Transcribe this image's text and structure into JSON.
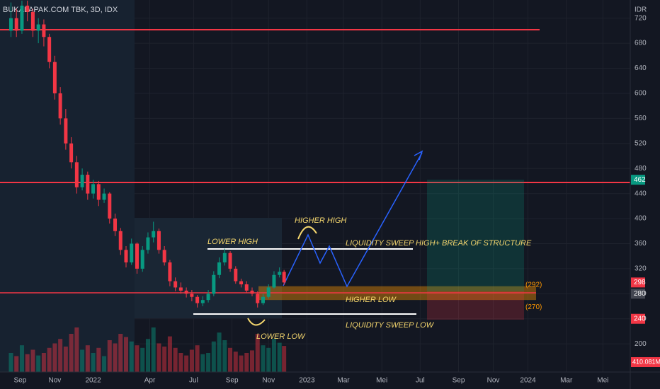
{
  "chart_data": {
    "type": "candlestick",
    "title": "BUKALAPAK.COM TBK, 3D, IDX",
    "currency": "IDR",
    "xlim": [
      -1.1,
      33.4
    ],
    "ylim": [
      155,
      749
    ],
    "yticks": [
      200,
      240,
      280,
      320,
      360,
      400,
      440,
      480,
      520,
      560,
      600,
      640,
      680,
      720
    ],
    "xticks": [
      {
        "value": 0,
        "label": "Sep"
      },
      {
        "value": 1.9,
        "label": "Nov"
      },
      {
        "value": 4.0,
        "label": "2022"
      },
      {
        "value": 7.1,
        "label": "Apr"
      },
      {
        "value": 9.5,
        "label": "Jul"
      },
      {
        "value": 11.6,
        "label": "Sep"
      },
      {
        "value": 13.6,
        "label": "Nov"
      },
      {
        "value": 15.7,
        "label": "2023"
      },
      {
        "value": 17.7,
        "label": "Mar"
      },
      {
        "value": 19.8,
        "label": "Mei"
      },
      {
        "value": 21.9,
        "label": "Jul"
      },
      {
        "value": 24.0,
        "label": "Sep"
      },
      {
        "value": 25.9,
        "label": "Nov"
      },
      {
        "value": 27.8,
        "label": "2024"
      },
      {
        "value": 29.9,
        "label": "Mar"
      },
      {
        "value": 31.9,
        "label": "Mei"
      }
    ],
    "up_color": "#089981",
    "down_color": "#f23645",
    "candles": [
      {
        "x": -0.5,
        "o": 700,
        "h": 745,
        "l": 690,
        "c": 720
      },
      {
        "x": -0.2,
        "o": 720,
        "h": 735,
        "l": 690,
        "c": 700
      },
      {
        "x": 0.1,
        "o": 700,
        "h": 748,
        "l": 695,
        "c": 740
      },
      {
        "x": 0.4,
        "o": 740,
        "h": 748,
        "l": 715,
        "c": 730
      },
      {
        "x": 0.7,
        "o": 730,
        "h": 735,
        "l": 690,
        "c": 700
      },
      {
        "x": 1.0,
        "o": 700,
        "h": 720,
        "l": 680,
        "c": 710
      },
      {
        "x": 1.3,
        "o": 710,
        "h": 718,
        "l": 675,
        "c": 690
      },
      {
        "x": 1.6,
        "o": 690,
        "h": 695,
        "l": 640,
        "c": 650
      },
      {
        "x": 1.9,
        "o": 650,
        "h": 660,
        "l": 590,
        "c": 600
      },
      {
        "x": 2.2,
        "o": 600,
        "h": 610,
        "l": 550,
        "c": 560
      },
      {
        "x": 2.5,
        "o": 560,
        "h": 575,
        "l": 510,
        "c": 520
      },
      {
        "x": 2.8,
        "o": 520,
        "h": 530,
        "l": 480,
        "c": 490
      },
      {
        "x": 3.1,
        "o": 490,
        "h": 500,
        "l": 440,
        "c": 450
      },
      {
        "x": 3.4,
        "o": 450,
        "h": 480,
        "l": 445,
        "c": 470
      },
      {
        "x": 3.7,
        "o": 470,
        "h": 475,
        "l": 430,
        "c": 440
      },
      {
        "x": 4.0,
        "o": 440,
        "h": 462,
        "l": 432,
        "c": 455
      },
      {
        "x": 4.3,
        "o": 455,
        "h": 460,
        "l": 420,
        "c": 430
      },
      {
        "x": 4.6,
        "o": 430,
        "h": 448,
        "l": 425,
        "c": 440
      },
      {
        "x": 4.9,
        "o": 440,
        "h": 442,
        "l": 392,
        "c": 400
      },
      {
        "x": 5.2,
        "o": 400,
        "h": 408,
        "l": 372,
        "c": 380
      },
      {
        "x": 5.5,
        "o": 380,
        "h": 385,
        "l": 342,
        "c": 350
      },
      {
        "x": 5.8,
        "o": 350,
        "h": 356,
        "l": 322,
        "c": 330
      },
      {
        "x": 6.1,
        "o": 330,
        "h": 368,
        "l": 326,
        "c": 360
      },
      {
        "x": 6.4,
        "o": 360,
        "h": 362,
        "l": 312,
        "c": 320
      },
      {
        "x": 6.7,
        "o": 320,
        "h": 356,
        "l": 315,
        "c": 350
      },
      {
        "x": 7.0,
        "o": 350,
        "h": 378,
        "l": 344,
        "c": 370
      },
      {
        "x": 7.3,
        "o": 370,
        "h": 395,
        "l": 362,
        "c": 380
      },
      {
        "x": 7.6,
        "o": 380,
        "h": 384,
        "l": 344,
        "c": 350
      },
      {
        "x": 7.9,
        "o": 350,
        "h": 356,
        "l": 325,
        "c": 330
      },
      {
        "x": 8.2,
        "o": 330,
        "h": 334,
        "l": 292,
        "c": 300
      },
      {
        "x": 8.5,
        "o": 300,
        "h": 306,
        "l": 284,
        "c": 290
      },
      {
        "x": 8.8,
        "o": 290,
        "h": 298,
        "l": 280,
        "c": 285
      },
      {
        "x": 9.1,
        "o": 285,
        "h": 290,
        "l": 274,
        "c": 280
      },
      {
        "x": 9.4,
        "o": 280,
        "h": 286,
        "l": 268,
        "c": 275
      },
      {
        "x": 9.7,
        "o": 275,
        "h": 278,
        "l": 258,
        "c": 265
      },
      {
        "x": 10.0,
        "o": 265,
        "h": 276,
        "l": 260,
        "c": 270
      },
      {
        "x": 10.3,
        "o": 270,
        "h": 286,
        "l": 266,
        "c": 280
      },
      {
        "x": 10.6,
        "o": 280,
        "h": 316,
        "l": 276,
        "c": 310
      },
      {
        "x": 10.9,
        "o": 310,
        "h": 338,
        "l": 305,
        "c": 330
      },
      {
        "x": 11.2,
        "o": 330,
        "h": 352,
        "l": 325,
        "c": 345
      },
      {
        "x": 11.5,
        "o": 345,
        "h": 348,
        "l": 315,
        "c": 320
      },
      {
        "x": 11.8,
        "o": 320,
        "h": 324,
        "l": 296,
        "c": 300
      },
      {
        "x": 12.1,
        "o": 300,
        "h": 304,
        "l": 290,
        "c": 295
      },
      {
        "x": 12.4,
        "o": 295,
        "h": 300,
        "l": 282,
        "c": 285
      },
      {
        "x": 12.7,
        "o": 285,
        "h": 290,
        "l": 276,
        "c": 280
      },
      {
        "x": 13.0,
        "o": 280,
        "h": 284,
        "l": 258,
        "c": 265
      },
      {
        "x": 13.3,
        "o": 265,
        "h": 280,
        "l": 262,
        "c": 275
      },
      {
        "x": 13.6,
        "o": 275,
        "h": 295,
        "l": 272,
        "c": 290
      },
      {
        "x": 13.9,
        "o": 290,
        "h": 316,
        "l": 288,
        "c": 310
      },
      {
        "x": 14.2,
        "o": 310,
        "h": 322,
        "l": 306,
        "c": 315
      },
      {
        "x": 14.45,
        "o": 315,
        "h": 318,
        "l": 294,
        "c": 298
      }
    ],
    "volume": [
      300,
      250,
      420,
      280,
      350,
      260,
      300,
      380,
      450,
      520,
      400,
      600,
      700,
      350,
      420,
      300,
      380,
      250,
      500,
      450,
      600,
      550,
      480,
      420,
      380,
      520,
      700,
      450,
      400,
      560,
      380,
      300,
      260,
      350,
      420,
      280,
      300,
      480,
      620,
      500,
      380,
      320,
      260,
      300,
      340,
      600,
      420,
      380,
      520,
      460,
      410.081
    ],
    "vlim": [
      0,
      1000
    ],
    "volume_label": {
      "value": 410.081,
      "label": "410.081M"
    },
    "price_markers": [
      {
        "value": 462,
        "color": "#089981"
      },
      {
        "value": 298,
        "color": "#f23645"
      },
      {
        "value": 280,
        "color": "#434651"
      },
      {
        "value": 240,
        "color": "#f23645"
      }
    ],
    "zone": {
      "high": {
        "value": 292,
        "label": "(292)"
      },
      "low": {
        "value": 270,
        "label": "(270)"
      },
      "color": "#ff9800"
    },
    "annotations": [
      "LOWER HIGH",
      "HIGHER HIGH",
      "LIQUIDITY SWEEP HIGH+ BREAK OF STRUCTURE",
      "HIGHER LOW",
      "LIQUIDITY SWEEP LOW",
      "LOWER LOW"
    ]
  }
}
